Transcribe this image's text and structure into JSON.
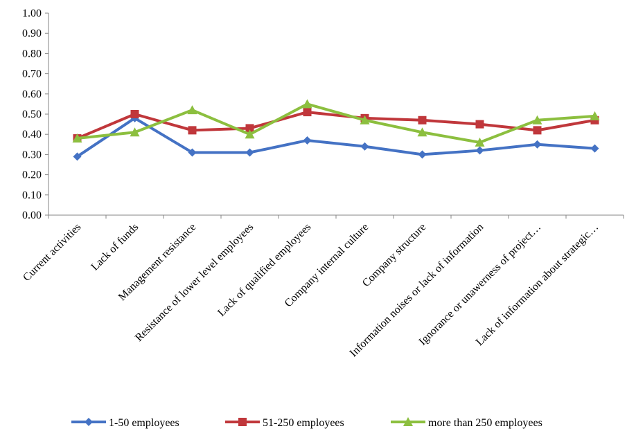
{
  "chart_data": {
    "type": "line",
    "title": "",
    "xlabel": "",
    "ylabel": "",
    "ylim": [
      0,
      1
    ],
    "yticks": [
      "0.00",
      "0.10",
      "0.20",
      "0.30",
      "0.40",
      "0.50",
      "0.60",
      "0.70",
      "0.80",
      "0.90",
      "1.00"
    ],
    "grid": false,
    "legend_position": "bottom",
    "categories": [
      "Current activities",
      "Lack of funds",
      "Management resistance",
      "Resistance of lower level employees",
      "Lack of qualified employees",
      "Company internal culture",
      "Company structure",
      "Information noises or lack of information",
      "Ignorance or unawerness of project…",
      "Lack of information about strategic…"
    ],
    "series": [
      {
        "name": "1-50 employees",
        "color": "#4472C4",
        "marker": "diamond",
        "values": [
          0.29,
          0.48,
          0.31,
          0.31,
          0.37,
          0.34,
          0.3,
          0.32,
          0.35,
          0.33
        ]
      },
      {
        "name": "51-250 employees",
        "color": "#C0373B",
        "marker": "square",
        "values": [
          0.38,
          0.5,
          0.42,
          0.43,
          0.51,
          0.48,
          0.47,
          0.45,
          0.42,
          0.47
        ]
      },
      {
        "name": "more than 250 employees",
        "color": "#8CBF3F",
        "marker": "triangle",
        "values": [
          0.38,
          0.41,
          0.52,
          0.4,
          0.55,
          0.47,
          0.41,
          0.36,
          0.47,
          0.49
        ]
      }
    ]
  }
}
